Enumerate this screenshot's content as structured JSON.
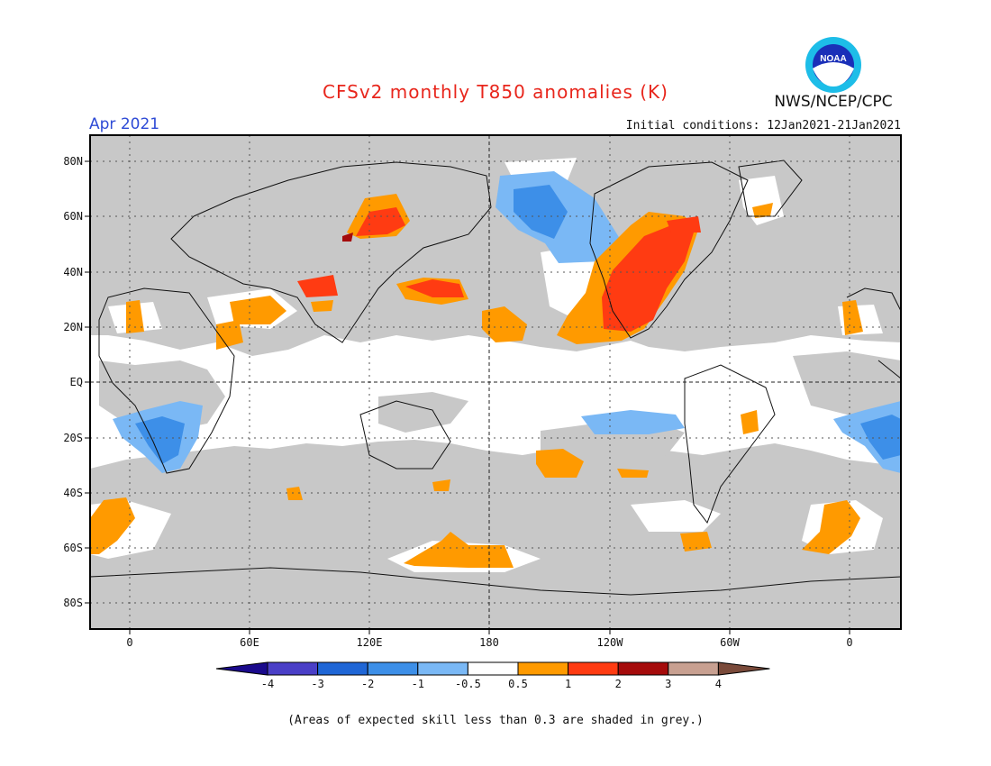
{
  "header": {
    "title": "CFSv2 monthly T850 anomalies (K)",
    "month": "Apr 2021",
    "initial_conditions": "Initial conditions: 12Jan2021-21Jan2021",
    "organization": "NWS/NCEP/CPC",
    "logo_text": "NOAA"
  },
  "axes": {
    "lat_labels": [
      "80N",
      "60N",
      "40N",
      "20N",
      "EQ",
      "20S",
      "40S",
      "60S",
      "80S"
    ],
    "lon_labels": [
      "0",
      "60E",
      "120E",
      "180",
      "120W",
      "60W",
      "0"
    ]
  },
  "colorbar": {
    "labels": [
      "-4",
      "-3",
      "-2",
      "-1",
      "-0.5",
      "0.5",
      "1",
      "2",
      "3",
      "4"
    ],
    "colors": [
      "#1a0a8c",
      "#4a3fc7",
      "#1f66d6",
      "#3d8fe8",
      "#7ab8f5",
      "#ffffff",
      "#ff9a00",
      "#ff3b12",
      "#a50b0b",
      "#c8a091",
      "#7a4a3a"
    ]
  },
  "map_colors": {
    "grey": "#c8c8c8",
    "land": "#111111"
  },
  "footnote": "(Areas of expected skill less than 0.3 are shaded in grey.)"
}
